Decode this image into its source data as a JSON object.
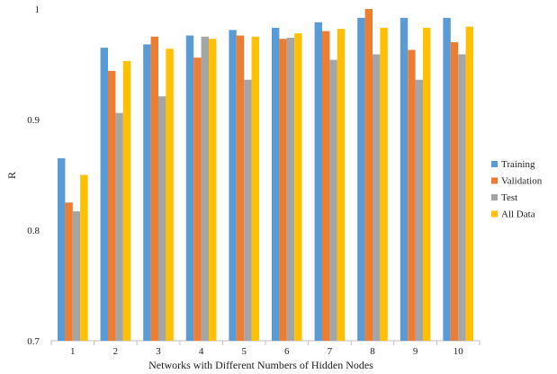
{
  "chart_data": {
    "type": "bar",
    "title": "",
    "xlabel": "Networks with Different Numbers of Hidden Nodes",
    "ylabel": "R",
    "ylim": [
      0.7,
      1.0
    ],
    "yticks": [
      0.7,
      0.8,
      0.9,
      1
    ],
    "ytick_labels": [
      "0.7",
      "0.8",
      "0.9",
      "1"
    ],
    "categories": [
      "1",
      "2",
      "3",
      "4",
      "5",
      "6",
      "7",
      "8",
      "9",
      "10"
    ],
    "grid": false,
    "legend_position": "right",
    "series": [
      {
        "name": "Training",
        "color": "#5B9BD5",
        "values": [
          0.865,
          0.965,
          0.968,
          0.976,
          0.981,
          0.983,
          0.988,
          0.992,
          0.992,
          0.992
        ]
      },
      {
        "name": "Validation",
        "color": "#ED7D31",
        "values": [
          0.825,
          0.944,
          0.975,
          0.956,
          0.976,
          0.973,
          0.98,
          1.0,
          0.963,
          0.97
        ]
      },
      {
        "name": "Test",
        "color": "#A5A5A5",
        "values": [
          0.817,
          0.906,
          0.921,
          0.975,
          0.936,
          0.974,
          0.954,
          0.959,
          0.936,
          0.959
        ]
      },
      {
        "name": "All Data",
        "color": "#FFC000",
        "values": [
          0.85,
          0.953,
          0.964,
          0.973,
          0.975,
          0.978,
          0.982,
          0.983,
          0.983,
          0.984
        ]
      }
    ]
  }
}
